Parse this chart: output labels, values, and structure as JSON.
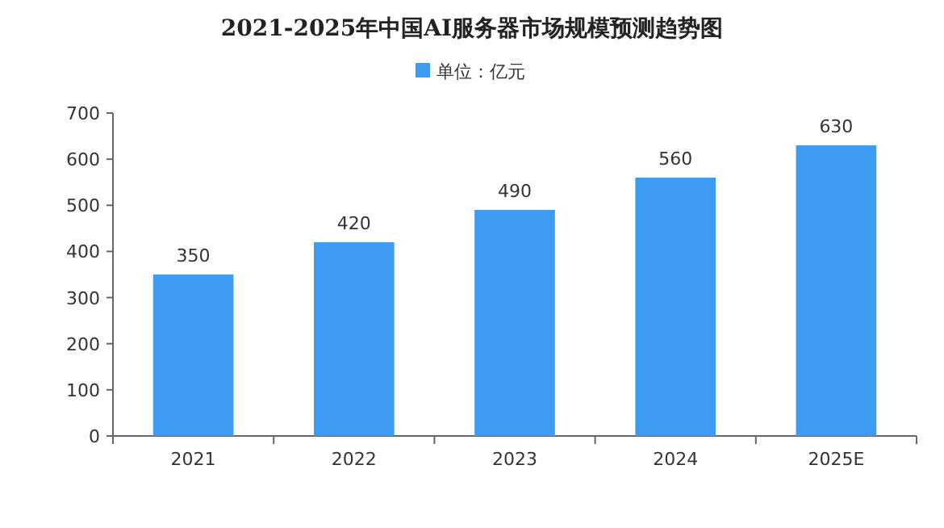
{
  "chart_data": {
    "type": "bar",
    "title": "2021-2025年中国AI服务器市场规模预测趋势图",
    "categories": [
      "2021",
      "2022",
      "2023",
      "2024",
      "2025E"
    ],
    "series": [
      {
        "name": "单位：亿元",
        "color": "#3d9cf2",
        "values": [
          350,
          420,
          490,
          560,
          630
        ]
      }
    ],
    "ylim": [
      0,
      700
    ],
    "yticks": [
      0,
      100,
      200,
      300,
      400,
      500,
      600,
      700
    ],
    "data_labels": true,
    "legend": "top",
    "grid": false
  }
}
